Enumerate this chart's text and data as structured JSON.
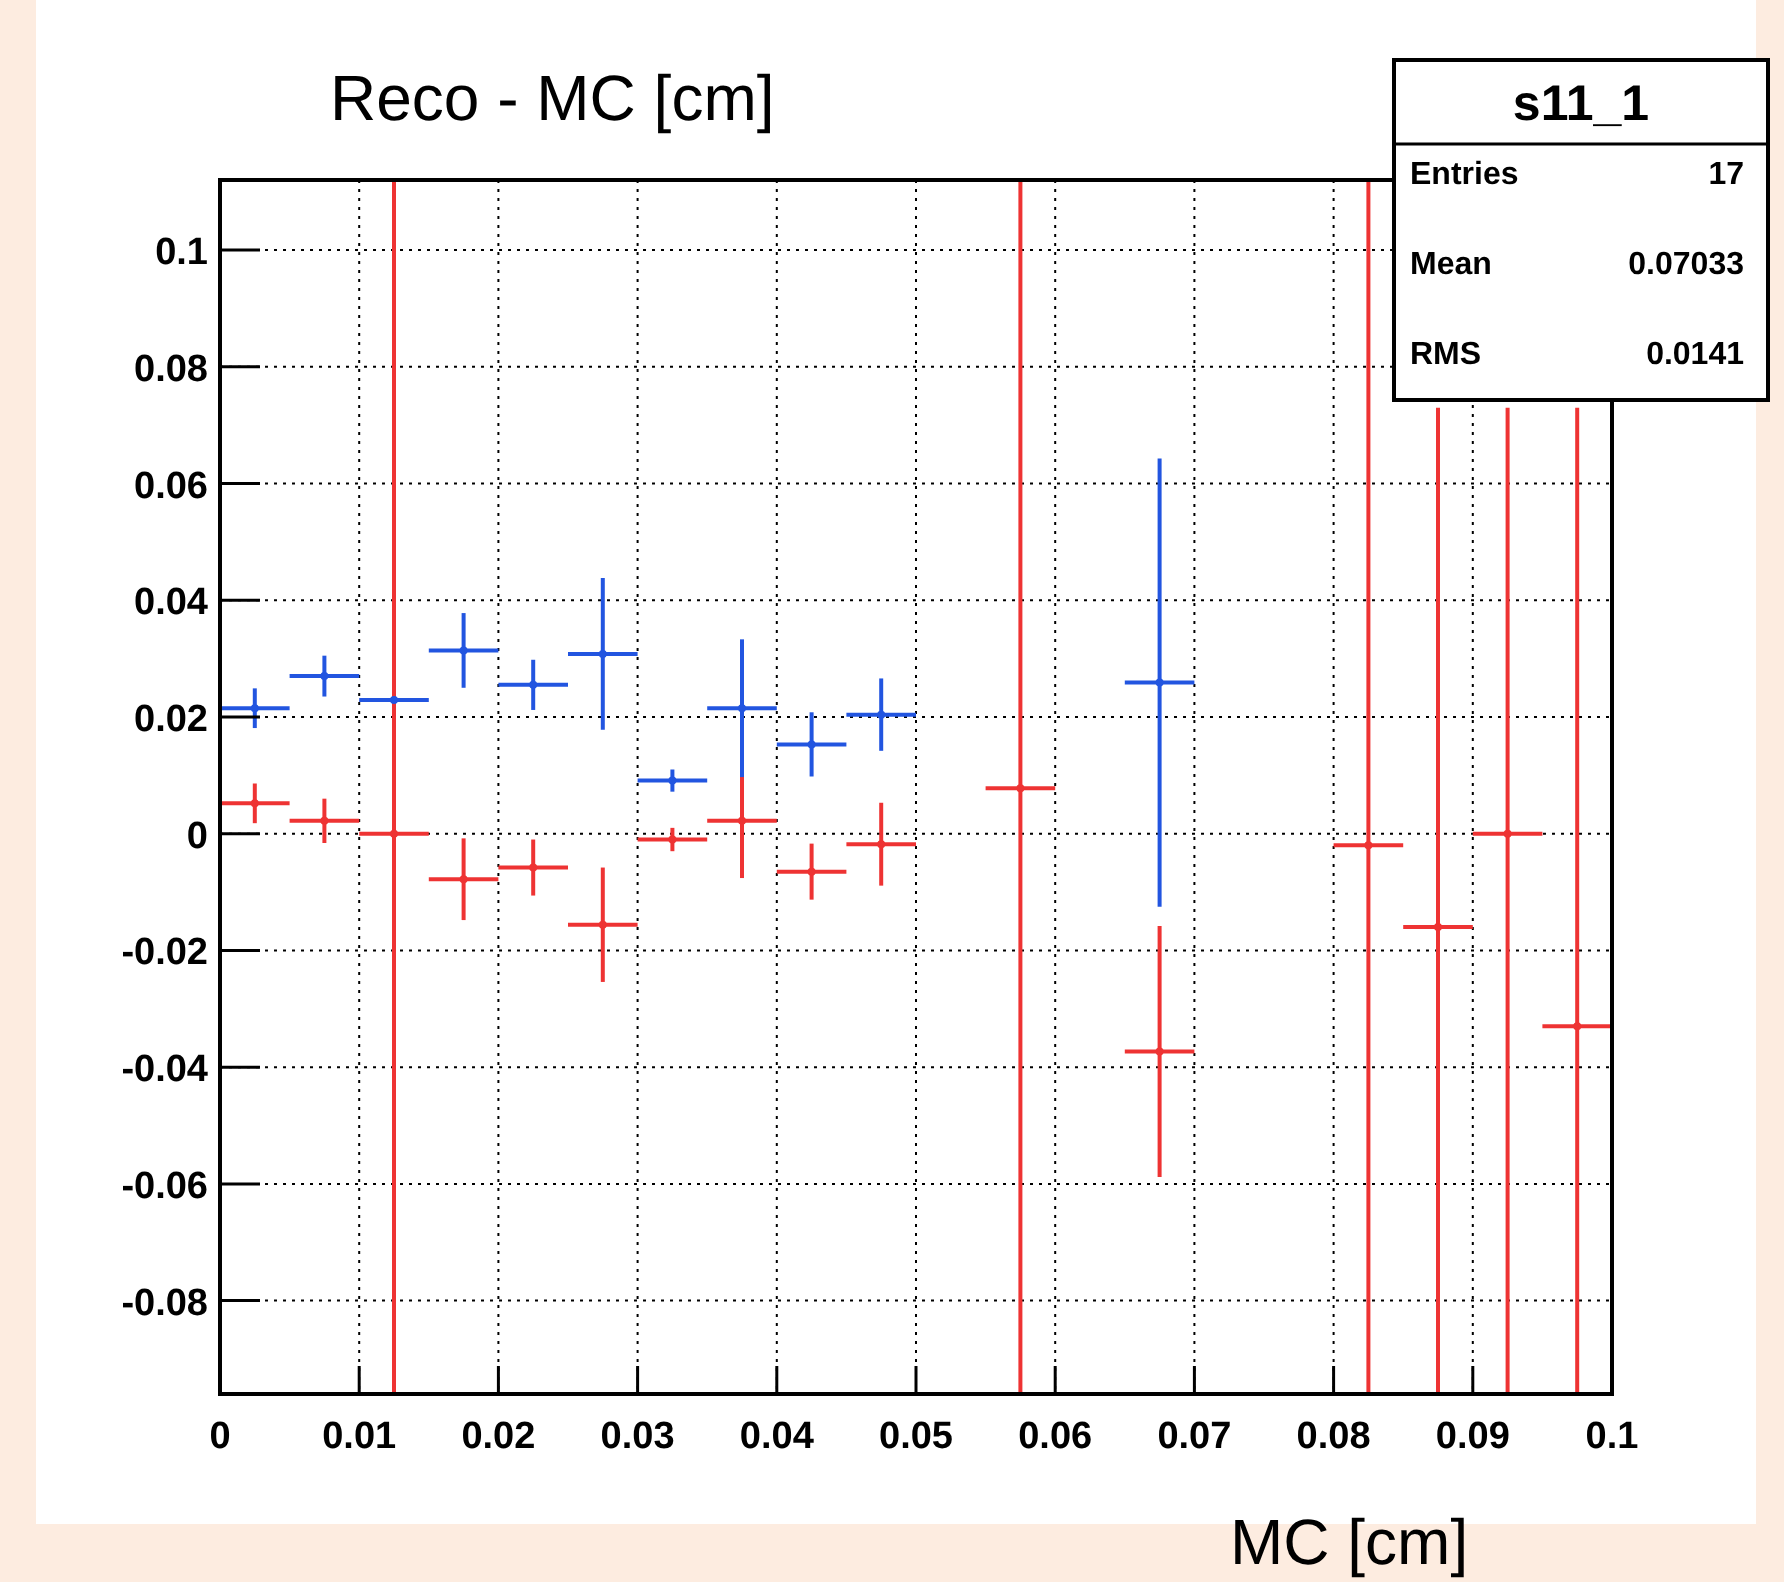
{
  "chart_data": {
    "type": "scatter",
    "ylabel": "Reco - MC [cm]",
    "xlabel": "MC [cm]",
    "series": [
      {
        "color": "#2255e0",
        "x": [
          0.0025,
          0.0075,
          0.0125,
          0.0175,
          0.0225,
          0.0275,
          0.0325,
          0.0375,
          0.0425,
          0.0475,
          0.0675
        ],
        "values": [
          0.0215,
          0.027,
          0.0229,
          0.0314,
          0.0255,
          0.0308,
          0.0091,
          0.0215,
          0.0153,
          0.0204,
          0.0259
        ],
        "errors": [
          0.0034,
          0.0035,
          0,
          0.0064,
          0.0043,
          0.013,
          0.0019,
          0.0118,
          0.0055,
          0.0062,
          0.0384
        ],
        "xerrors": [
          0.0025,
          0.0025,
          0.0025,
          0.0025,
          0.0025,
          0.0025,
          0.0025,
          0.0025,
          0.0025,
          0.0025,
          0.0025
        ]
      },
      {
        "color": "#ee3333",
        "x": [
          0.0025,
          0.0075,
          0.0125,
          0.0175,
          0.0225,
          0.0275,
          0.0325,
          0.0375,
          0.0425,
          0.0475,
          0.0575,
          0.0675,
          0.0825,
          0.0875,
          0.0925,
          0.0975
        ],
        "values": [
          0.0052,
          0.0022,
          0,
          -0.0078,
          -0.0058,
          -0.0156,
          -0.001,
          0.0022,
          -0.0065,
          -0.0018,
          0.0078,
          -0.0373,
          -0.002,
          -0.016,
          0,
          -0.033
        ],
        "errors": [
          0.0034,
          0.0038,
          [
            -0.096,
            0.112
          ],
          0.007,
          0.0048,
          0.0098,
          0.002,
          0.0098,
          0.0048,
          0.0071,
          [
            -0.096,
            0.112
          ],
          0.0215,
          [
            -0.096,
            0.112
          ],
          [
            -0.096,
            0.073
          ],
          [
            -0.096,
            0.073
          ],
          [
            -0.096,
            0.073
          ]
        ],
        "xerrors": [
          0.0025,
          0.0025,
          0.0025,
          0.0025,
          0.0025,
          0.0025,
          0.0025,
          0.0025,
          0.0025,
          0.0025,
          0.0025,
          0.0025,
          0.0025,
          0.0025,
          0.0025,
          0.0025
        ]
      }
    ],
    "marker": "circle",
    "grid": true,
    "xlim": [
      0,
      0.1
    ],
    "xticks": [
      0,
      0.01,
      0.02,
      0.03,
      0.04,
      0.05,
      0.06,
      0.07,
      0.08,
      0.09,
      0.1
    ],
    "ylim": [
      -0.096,
      0.112
    ],
    "yticks": [
      -0.08,
      -0.06,
      -0.04,
      -0.02,
      0,
      0.02,
      0.04,
      0.06,
      0.08,
      0.1
    ],
    "annotations": [
      "s11_1",
      "Entries",
      "17",
      "Mean",
      "0.07033",
      "RMS",
      "0.0141"
    ]
  }
}
